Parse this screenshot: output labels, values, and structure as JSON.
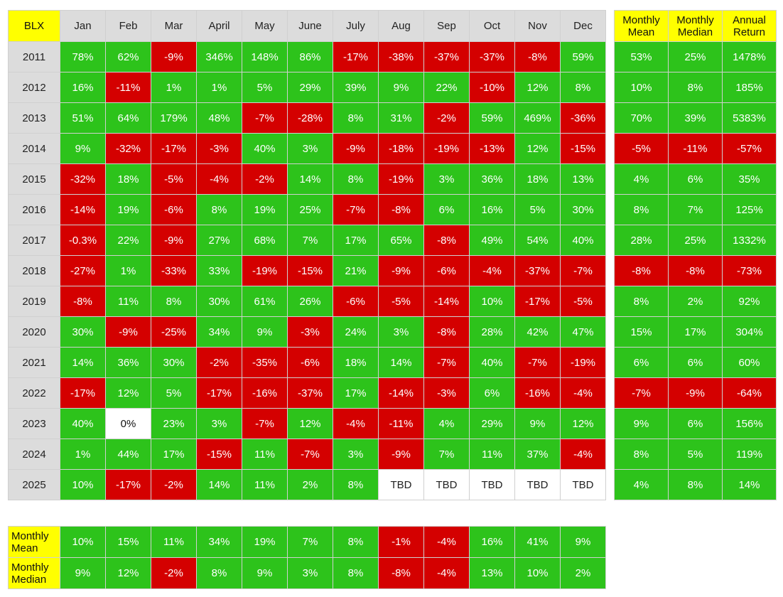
{
  "chart_data": {
    "type": "table",
    "corner_label": "BLX",
    "months": [
      "Jan",
      "Feb",
      "Mar",
      "April",
      "May",
      "June",
      "July",
      "Aug",
      "Sep",
      "Oct",
      "Nov",
      "Dec"
    ],
    "summary_headers": [
      [
        "Monthly",
        "Mean"
      ],
      [
        "Monthly",
        "Median"
      ],
      [
        "Annual",
        "Return"
      ]
    ],
    "rows": [
      {
        "year": "2011",
        "values": [
          "78%",
          "62%",
          "-9%",
          "346%",
          "148%",
          "86%",
          "-17%",
          "-38%",
          "-37%",
          "-37%",
          "-8%",
          "59%"
        ],
        "summary": [
          "53%",
          "25%",
          "1478%"
        ]
      },
      {
        "year": "2012",
        "values": [
          "16%",
          "-11%",
          "1%",
          "1%",
          "5%",
          "29%",
          "39%",
          "9%",
          "22%",
          "-10%",
          "12%",
          "8%"
        ],
        "summary": [
          "10%",
          "8%",
          "185%"
        ]
      },
      {
        "year": "2013",
        "values": [
          "51%",
          "64%",
          "179%",
          "48%",
          "-7%",
          "-28%",
          "8%",
          "31%",
          "-2%",
          "59%",
          "469%",
          "-36%"
        ],
        "summary": [
          "70%",
          "39%",
          "5383%"
        ]
      },
      {
        "year": "2014",
        "values": [
          "9%",
          "-32%",
          "-17%",
          "-3%",
          "40%",
          "3%",
          "-9%",
          "-18%",
          "-19%",
          "-13%",
          "12%",
          "-15%"
        ],
        "summary": [
          "-5%",
          "-11%",
          "-57%"
        ]
      },
      {
        "year": "2015",
        "values": [
          "-32%",
          "18%",
          "-5%",
          "-4%",
          "-2%",
          "14%",
          "8%",
          "-19%",
          "3%",
          "36%",
          "18%",
          "13%"
        ],
        "summary": [
          "4%",
          "6%",
          "35%"
        ]
      },
      {
        "year": "2016",
        "values": [
          "-14%",
          "19%",
          "-6%",
          "8%",
          "19%",
          "25%",
          "-7%",
          "-8%",
          "6%",
          "16%",
          "5%",
          "30%"
        ],
        "summary": [
          "8%",
          "7%",
          "125%"
        ]
      },
      {
        "year": "2017",
        "values": [
          "-0.3%",
          "22%",
          "-9%",
          "27%",
          "68%",
          "7%",
          "17%",
          "65%",
          "-8%",
          "49%",
          "54%",
          "40%"
        ],
        "summary": [
          "28%",
          "25%",
          "1332%"
        ]
      },
      {
        "year": "2018",
        "values": [
          "-27%",
          "1%",
          "-33%",
          "33%",
          "-19%",
          "-15%",
          "21%",
          "-9%",
          "-6%",
          "-4%",
          "-37%",
          "-7%"
        ],
        "summary": [
          "-8%",
          "-8%",
          "-73%"
        ]
      },
      {
        "year": "2019",
        "values": [
          "-8%",
          "11%",
          "8%",
          "30%",
          "61%",
          "26%",
          "-6%",
          "-5%",
          "-14%",
          "10%",
          "-17%",
          "-5%"
        ],
        "summary": [
          "8%",
          "2%",
          "92%"
        ]
      },
      {
        "year": "2020",
        "values": [
          "30%",
          "-9%",
          "-25%",
          "34%",
          "9%",
          "-3%",
          "24%",
          "3%",
          "-8%",
          "28%",
          "42%",
          "47%"
        ],
        "summary": [
          "15%",
          "17%",
          "304%"
        ]
      },
      {
        "year": "2021",
        "values": [
          "14%",
          "36%",
          "30%",
          "-2%",
          "-35%",
          "-6%",
          "18%",
          "14%",
          "-7%",
          "40%",
          "-7%",
          "-19%"
        ],
        "summary": [
          "6%",
          "6%",
          "60%"
        ]
      },
      {
        "year": "2022",
        "values": [
          "-17%",
          "12%",
          "5%",
          "-17%",
          "-16%",
          "-37%",
          "17%",
          "-14%",
          "-3%",
          "6%",
          "-16%",
          "-4%"
        ],
        "summary": [
          "-7%",
          "-9%",
          "-64%"
        ]
      },
      {
        "year": "2023",
        "values": [
          "40%",
          "0%",
          "23%",
          "3%",
          "-7%",
          "12%",
          "-4%",
          "-11%",
          "4%",
          "29%",
          "9%",
          "12%"
        ],
        "summary": [
          "9%",
          "6%",
          "156%"
        ]
      },
      {
        "year": "2024",
        "values": [
          "1%",
          "44%",
          "17%",
          "-15%",
          "11%",
          "-7%",
          "3%",
          "-9%",
          "7%",
          "11%",
          "37%",
          "-4%"
        ],
        "summary": [
          "8%",
          "5%",
          "119%"
        ]
      },
      {
        "year": "2025",
        "values": [
          "10%",
          "-17%",
          "-2%",
          "14%",
          "11%",
          "2%",
          "8%",
          "TBD",
          "TBD",
          "TBD",
          "TBD",
          "TBD"
        ],
        "summary": [
          "4%",
          "8%",
          "14%"
        ]
      }
    ],
    "bottom_rows": [
      {
        "label": [
          "Monthly",
          "Mean"
        ],
        "values": [
          "10%",
          "15%",
          "11%",
          "34%",
          "19%",
          "7%",
          "8%",
          "-1%",
          "-4%",
          "16%",
          "41%",
          "9%"
        ]
      },
      {
        "label": [
          "Monthly",
          "Median"
        ],
        "values": [
          "9%",
          "12%",
          "-2%",
          "8%",
          "9%",
          "3%",
          "8%",
          "-8%",
          "-4%",
          "13%",
          "10%",
          "2%"
        ]
      }
    ],
    "colors": {
      "positive": "#2dc31b",
      "negative": "#d40000",
      "neutral": "#ffffff",
      "header": "#dcdcdc",
      "highlight": "#ffff00"
    }
  }
}
